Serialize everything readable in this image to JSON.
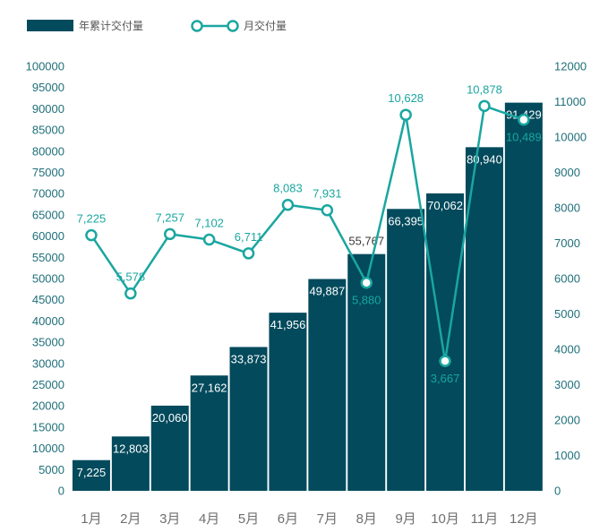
{
  "chart_data": {
    "type": "bar",
    "categories": [
      "1月",
      "2月",
      "3月",
      "4月",
      "5月",
      "6月",
      "7月",
      "8月",
      "9月",
      "10月",
      "11月",
      "12月"
    ],
    "series": [
      {
        "name": "年累计交付量",
        "type": "bar",
        "axis": "left",
        "values": [
          7225,
          12803,
          20060,
          27162,
          33873,
          41956,
          49887,
          55767,
          66395,
          70062,
          80940,
          91429
        ],
        "labels": [
          "7,225",
          "12,803",
          "20,060",
          "27,162",
          "33,873",
          "41,956",
          "49,887",
          "55,767",
          "66,395",
          "70,062",
          "80,940",
          "91,429"
        ]
      },
      {
        "name": "月交付量",
        "type": "line",
        "axis": "right",
        "values": [
          7225,
          5578,
          7257,
          7102,
          6711,
          8083,
          7931,
          5880,
          10628,
          3667,
          10878,
          10489
        ],
        "labels": [
          "7,225",
          "5,578",
          "7,257",
          "7,102",
          "6,711",
          "8,083",
          "7,931",
          "5,880",
          "10,628",
          "3,667",
          "10,878",
          "10,489"
        ]
      }
    ],
    "y_left": {
      "min": 0,
      "max": 100000,
      "step": 5000,
      "ticks": [
        "0",
        "5000",
        "10000",
        "15000",
        "20000",
        "25000",
        "30000",
        "35000",
        "40000",
        "45000",
        "50000",
        "55000",
        "60000",
        "65000",
        "70000",
        "75000",
        "80000",
        "85000",
        "90000",
        "95000",
        "100000"
      ]
    },
    "y_right": {
      "min": 0,
      "max": 12000,
      "step": 1000,
      "ticks": [
        "0",
        "1000",
        "2000",
        "3000",
        "4000",
        "5000",
        "6000",
        "7000",
        "8000",
        "9000",
        "10000",
        "11000",
        "12000"
      ]
    },
    "title": "",
    "xlabel": "",
    "ylabel": "",
    "legend": {
      "position": "top-left"
    },
    "grid": false,
    "colors": {
      "bar": "#024a5c",
      "line": "#1aa6a0",
      "marker_fill": "#ffffff",
      "line_label": "#1aa6a0",
      "tick_left": "#1f6f7a",
      "tick_right": "#1f6f7a",
      "tick_x": "#6f6f6f"
    }
  }
}
